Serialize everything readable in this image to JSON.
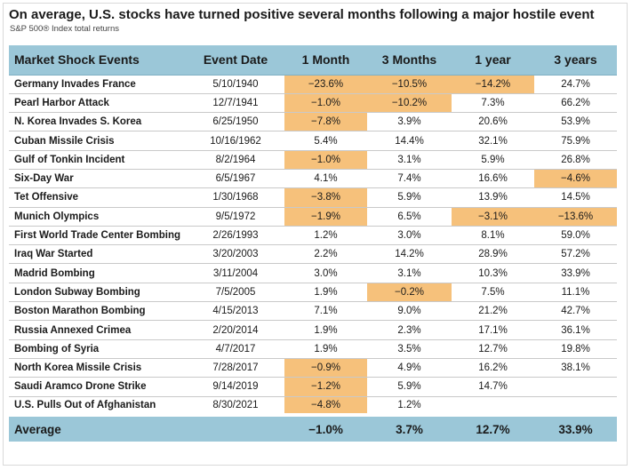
{
  "header": {
    "title": "On average, U.S. stocks have turned positive several months following a major hostile event",
    "subtitle": "S&P 500® Index total returns"
  },
  "colors": {
    "header_bg": "#9bc7d8",
    "negative_highlight": "#f6c17b"
  },
  "chart_data": {
    "type": "table",
    "columns": [
      "Market Shock Events",
      "Event Date",
      "1 Month",
      "3 Months",
      "1 year",
      "3 years"
    ],
    "rows": [
      {
        "event": "Germany Invades France",
        "date": "5/10/1940",
        "m1": "−23.6%",
        "m3": "−10.5%",
        "y1": "−14.2%",
        "y3": "24.7%"
      },
      {
        "event": "Pearl Harbor Attack",
        "date": "12/7/1941",
        "m1": "−1.0%",
        "m3": "−10.2%",
        "y1": "7.3%",
        "y3": "66.2%"
      },
      {
        "event": "N. Korea Invades S. Korea",
        "date": "6/25/1950",
        "m1": "−7.8%",
        "m3": "3.9%",
        "y1": "20.6%",
        "y3": "53.9%"
      },
      {
        "event": "Cuban Missile Crisis",
        "date": "10/16/1962",
        "m1": "5.4%",
        "m3": "14.4%",
        "y1": "32.1%",
        "y3": "75.9%"
      },
      {
        "event": "Gulf of Tonkin Incident",
        "date": "8/2/1964",
        "m1": "−1.0%",
        "m3": "3.1%",
        "y1": "5.9%",
        "y3": "26.8%"
      },
      {
        "event": "Six-Day War",
        "date": "6/5/1967",
        "m1": "4.1%",
        "m3": "7.4%",
        "y1": "16.6%",
        "y3": "−4.6%"
      },
      {
        "event": "Tet Offensive",
        "date": "1/30/1968",
        "m1": "−3.8%",
        "m3": "5.9%",
        "y1": "13.9%",
        "y3": "14.5%"
      },
      {
        "event": "Munich Olympics",
        "date": "9/5/1972",
        "m1": "−1.9%",
        "m3": "6.5%",
        "y1": "−3.1%",
        "y3": "−13.6%"
      },
      {
        "event": "First World Trade Center Bombing",
        "date": "2/26/1993",
        "m1": "1.2%",
        "m3": "3.0%",
        "y1": "8.1%",
        "y3": "59.0%"
      },
      {
        "event": "Iraq War Started",
        "date": "3/20/2003",
        "m1": "2.2%",
        "m3": "14.2%",
        "y1": "28.9%",
        "y3": "57.2%"
      },
      {
        "event": "Madrid Bombing",
        "date": "3/11/2004",
        "m1": "3.0%",
        "m3": "3.1%",
        "y1": "10.3%",
        "y3": "33.9%"
      },
      {
        "event": "London Subway Bombing",
        "date": "7/5/2005",
        "m1": "1.9%",
        "m3": "−0.2%",
        "y1": "7.5%",
        "y3": "11.1%"
      },
      {
        "event": "Boston Marathon Bombing",
        "date": "4/15/2013",
        "m1": "7.1%",
        "m3": "9.0%",
        "y1": "21.2%",
        "y3": "42.7%"
      },
      {
        "event": "Russia Annexed Crimea",
        "date": "2/20/2014",
        "m1": "1.9%",
        "m3": "2.3%",
        "y1": "17.1%",
        "y3": "36.1%"
      },
      {
        "event": "Bombing of Syria",
        "date": "4/7/2017",
        "m1": "1.9%",
        "m3": "3.5%",
        "y1": "12.7%",
        "y3": "19.8%"
      },
      {
        "event": "North Korea Missile Crisis",
        "date": "7/28/2017",
        "m1": "−0.9%",
        "m3": "4.9%",
        "y1": "16.2%",
        "y3": "38.1%"
      },
      {
        "event": "Saudi Aramco Drone Strike",
        "date": "9/14/2019",
        "m1": "−1.2%",
        "m3": "5.9%",
        "y1": "14.7%",
        "y3": ""
      },
      {
        "event": "U.S. Pulls Out of Afghanistan",
        "date": "8/30/2021",
        "m1": "−4.8%",
        "m3": "1.2%",
        "y1": "",
        "y3": ""
      }
    ],
    "average": {
      "label": "Average",
      "m1": "−1.0%",
      "m3": "3.7%",
      "y1": "12.7%",
      "y3": "33.9%"
    },
    "highlight_rule": "negative values highlighted"
  }
}
